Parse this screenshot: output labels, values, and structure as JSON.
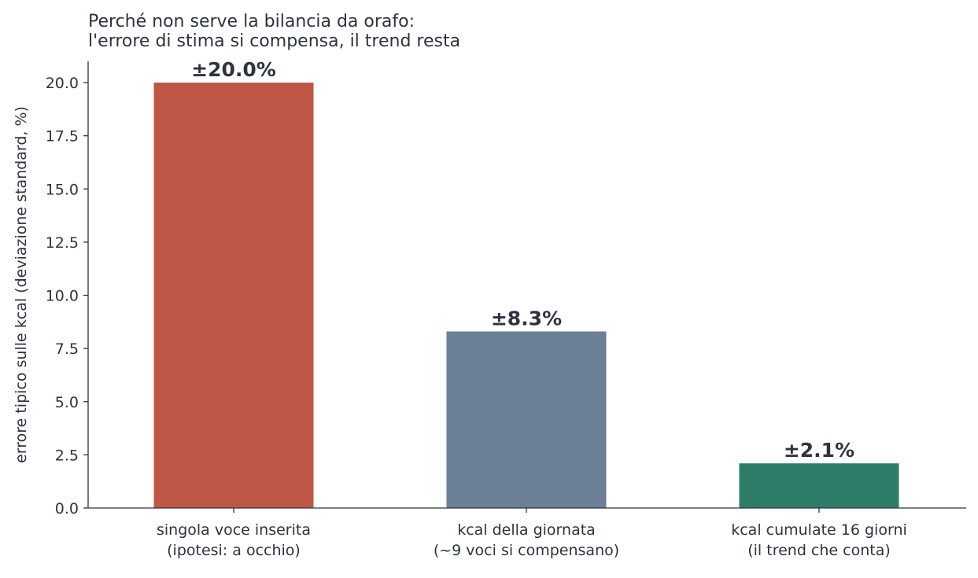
{
  "chart_data": {
    "type": "bar",
    "title": "Perché non serve la bilancia da orafo:\nl'errore di stima si compensa, il trend resta",
    "xlabel": "",
    "ylabel": "errore tipico sulle kcal (deviazione standard, %)",
    "ylim": [
      0,
      21
    ],
    "yticks": [
      0,
      2.5,
      5,
      7.5,
      10,
      12.5,
      15,
      17.5,
      20
    ],
    "ytick_labels": [
      "0.0",
      "2.5",
      "5.0",
      "7.5",
      "10.0",
      "12.5",
      "15.0",
      "17.5",
      "20.0"
    ],
    "grid": false,
    "categories": [
      "singola voce inserita\n(ipotesi: a occhio)",
      "kcal della giornata\n(~9 voci si compensano)",
      "kcal cumulate 16 giorni\n(il trend che conta)"
    ],
    "values": [
      20.0,
      8.3,
      2.1
    ],
    "data_labels": [
      "±20.0%",
      "±8.3%",
      "±2.1%"
    ],
    "colors": [
      "#c05746",
      "#6b7f96",
      "#2e7d6b"
    ]
  }
}
